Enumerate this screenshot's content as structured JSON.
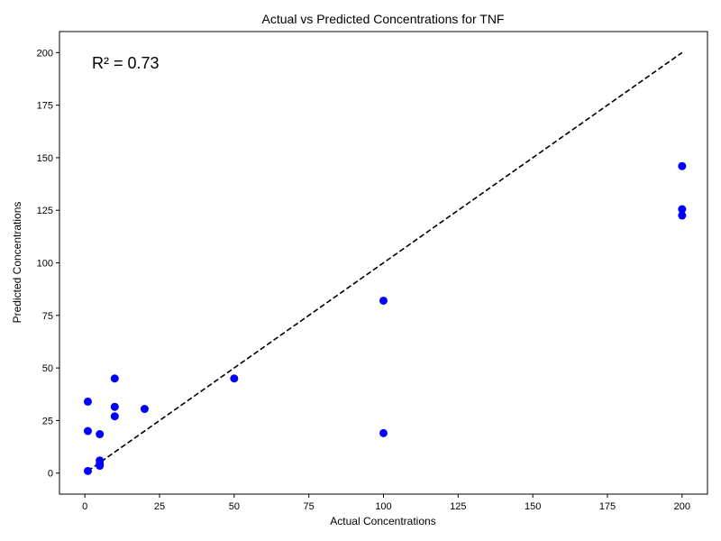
{
  "chart_data": {
    "type": "scatter",
    "title": "Actual vs Predicted Concentrations for TNF",
    "xlabel": "Actual Concentrations",
    "ylabel": "Predicted Concentrations",
    "xlim": [
      -8.5,
      208.5
    ],
    "ylim": [
      -10,
      210
    ],
    "xticks": [
      0,
      25,
      50,
      75,
      100,
      125,
      150,
      175,
      200
    ],
    "yticks": [
      0,
      25,
      50,
      75,
      100,
      125,
      150,
      175,
      200
    ],
    "grid": false,
    "annotation": "R² = 0.73",
    "point_color": "#0000ff",
    "reference_line": {
      "x": [
        1,
        200
      ],
      "y": [
        1,
        200
      ],
      "style": "dashed",
      "color": "#000000"
    },
    "points": [
      {
        "x": 1,
        "y": 1
      },
      {
        "x": 1,
        "y": 20
      },
      {
        "x": 1,
        "y": 34
      },
      {
        "x": 5,
        "y": 3.5
      },
      {
        "x": 5,
        "y": 4.5
      },
      {
        "x": 5,
        "y": 6
      },
      {
        "x": 5,
        "y": 18.5
      },
      {
        "x": 10,
        "y": 27
      },
      {
        "x": 10,
        "y": 31.5
      },
      {
        "x": 10,
        "y": 45
      },
      {
        "x": 20,
        "y": 30.5
      },
      {
        "x": 50,
        "y": 45
      },
      {
        "x": 100,
        "y": 19
      },
      {
        "x": 100,
        "y": 82
      },
      {
        "x": 200,
        "y": 122.5
      },
      {
        "x": 200,
        "y": 125.5
      },
      {
        "x": 200,
        "y": 146
      }
    ]
  }
}
